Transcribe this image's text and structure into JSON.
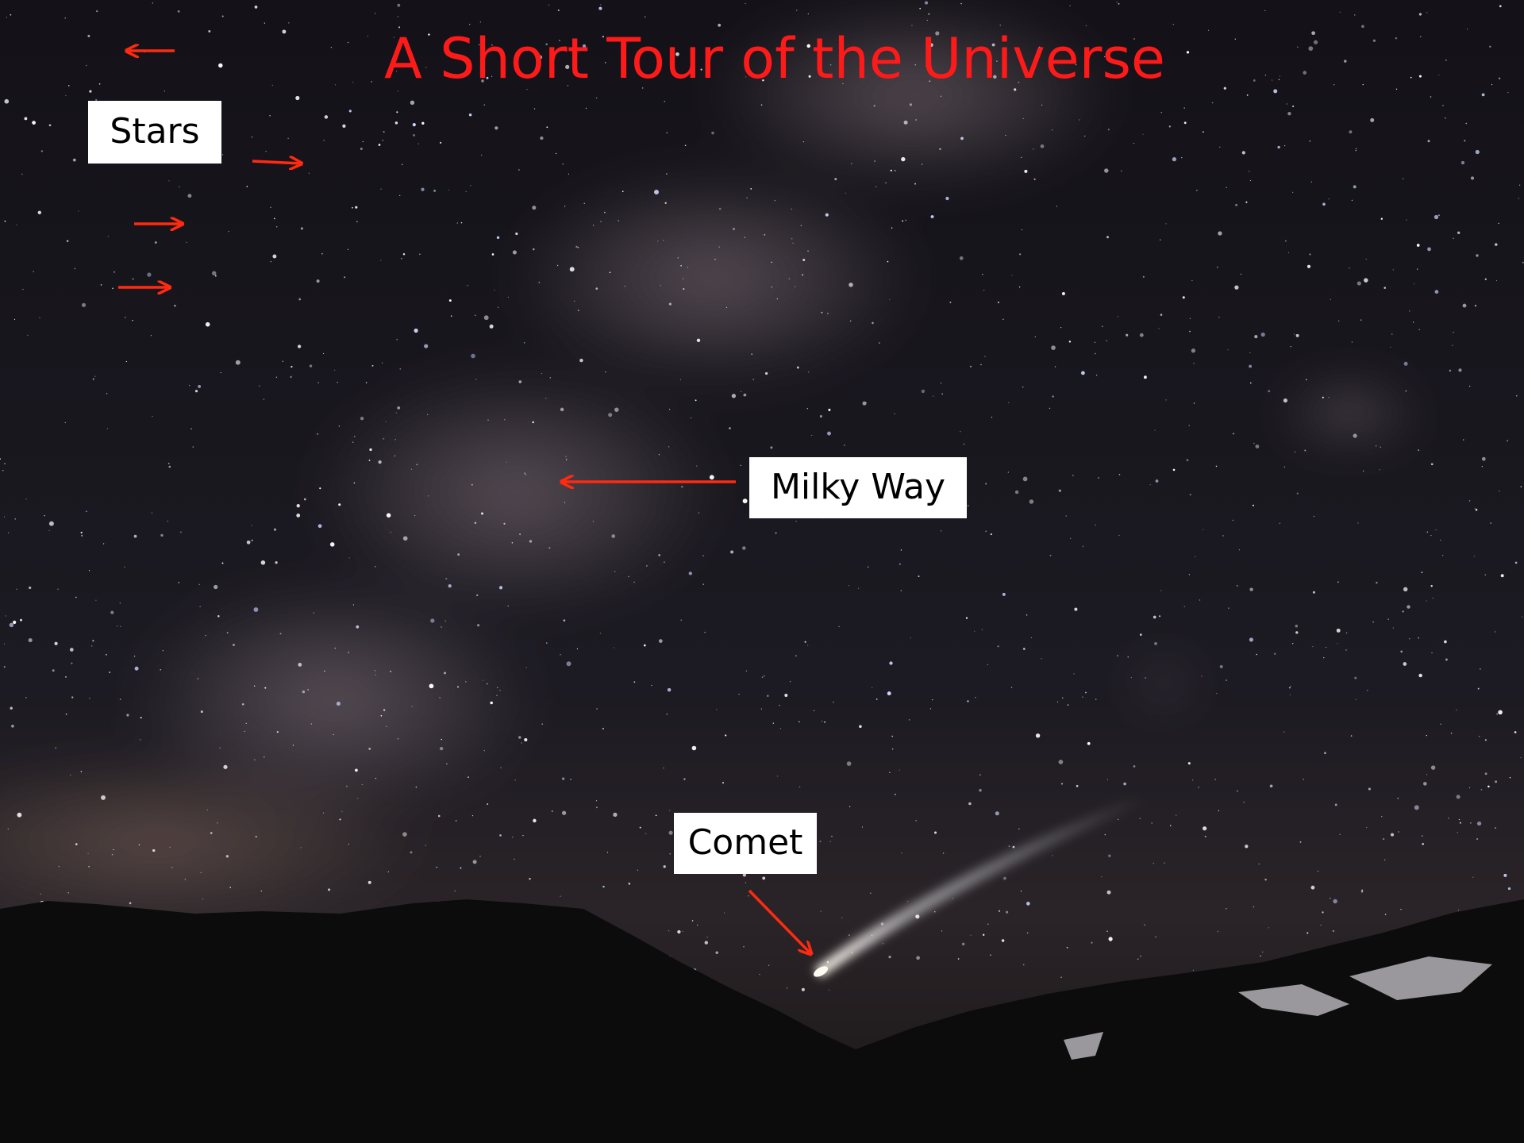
{
  "title": "A Short Tour of the Universe",
  "labels": {
    "stars": "Stars",
    "milky_way": "Milky Way",
    "comet": "Comet"
  }
}
